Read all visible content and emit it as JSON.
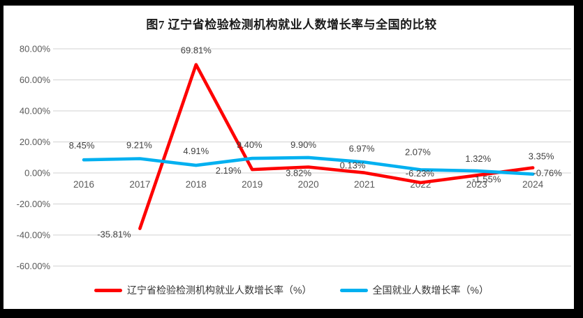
{
  "chart_data": {
    "type": "line",
    "title": "图7 辽宁省检验检测机构就业人数增长率与全国的比较",
    "categories": [
      "2016",
      "2017",
      "2018",
      "2019",
      "2020",
      "2021",
      "2022",
      "2023",
      "2024"
    ],
    "series": [
      {
        "name": "辽宁省检验检测机构就业人数增长率（%）",
        "color": "#FE0000",
        "values": [
          null,
          -35.81,
          69.81,
          2.19,
          3.82,
          0.13,
          -6.23,
          -1.55,
          3.35
        ],
        "label_offsets": [
          null,
          [
            -37,
            13
          ],
          [
            0,
            -16
          ],
          [
            -34,
            6
          ],
          [
            -14,
            13
          ],
          [
            -17,
            -6
          ],
          [
            -1,
            -9
          ],
          [
            14,
            10
          ],
          [
            12,
            -12
          ]
        ]
      },
      {
        "name": "全国就业人数增长率（%）",
        "color": "#00B0F0",
        "values": [
          8.45,
          9.21,
          4.91,
          9.4,
          9.9,
          6.97,
          2.07,
          1.32,
          -0.76
        ],
        "label_offsets": [
          [
            -3,
            -16
          ],
          [
            -1,
            -15
          ],
          [
            0,
            -16
          ],
          [
            -4,
            -15
          ],
          [
            -7,
            -14
          ],
          [
            -4,
            -15
          ],
          [
            -4,
            -21
          ],
          [
            2,
            -13
          ],
          [
            21,
            3
          ]
        ]
      }
    ],
    "yaxis": {
      "min": -60,
      "max": 80,
      "step": 20,
      "tick_format": "0.00%"
    },
    "xaxis": {
      "label": ""
    },
    "grid": true,
    "legend_position": "bottom",
    "label_format": "0.00%",
    "colors": {
      "gridline": "#D9D9D9",
      "tick_text": "#595959",
      "label_text": "#404040",
      "title_text": "#1a1a1a",
      "frame": "#000000",
      "background": "#FFFFFF"
    }
  }
}
